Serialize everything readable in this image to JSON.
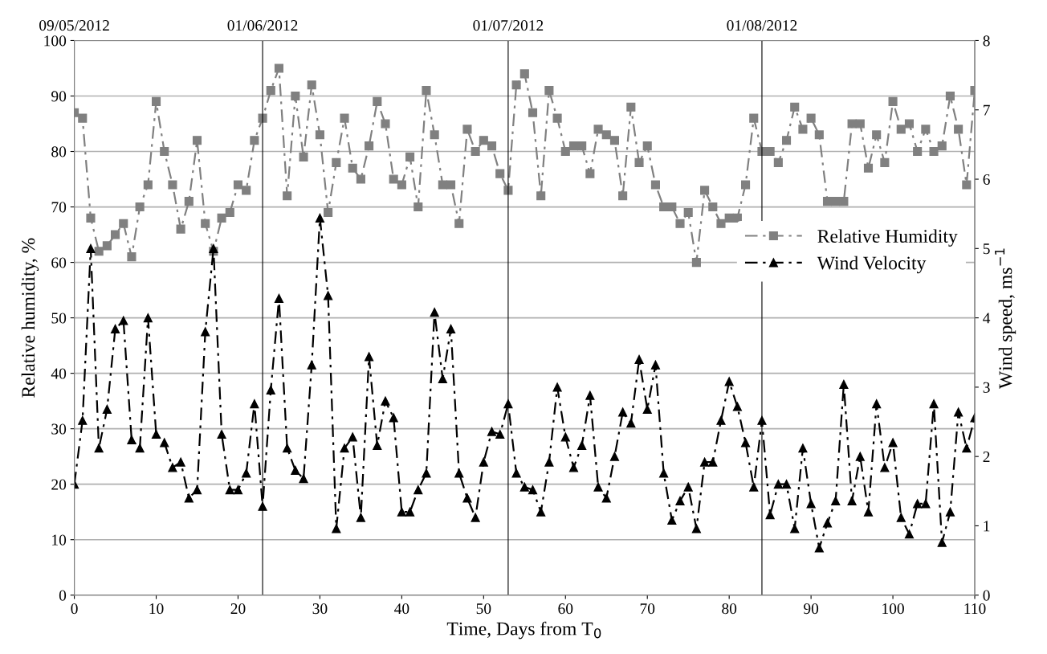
{
  "chart_data": {
    "type": "line",
    "xlabel": "Time, Days from T$_{0}$",
    "ylabel": "Relative humidity, %",
    "y2label": "Wind speed, ms$^{−1}$",
    "x": [
      0,
      1,
      2,
      3,
      4,
      5,
      6,
      7,
      8,
      9,
      10,
      11,
      12,
      13,
      14,
      15,
      16,
      17,
      18,
      19,
      20,
      21,
      22,
      23,
      24,
      25,
      26,
      27,
      28,
      29,
      30,
      31,
      32,
      33,
      34,
      35,
      36,
      37,
      38,
      39,
      40,
      41,
      42,
      43,
      44,
      45,
      46,
      47,
      48,
      49,
      50,
      51,
      52,
      53,
      54,
      55,
      56,
      57,
      58,
      59,
      60,
      61,
      62,
      63,
      64,
      65,
      66,
      67,
      68,
      69,
      70,
      71,
      72,
      73,
      74,
      75,
      76,
      77,
      78,
      79,
      80,
      81,
      82,
      83,
      84,
      85,
      86,
      87,
      88,
      89,
      90,
      91,
      92,
      93,
      94,
      95,
      96,
      97,
      98,
      99,
      100,
      101,
      102,
      103,
      104,
      105,
      106,
      107,
      108,
      109,
      110
    ],
    "series": [
      {
        "name": "Relative Humidity",
        "color": "#808080",
        "marker": "square",
        "line_style": "dashed",
        "values": [
          87,
          86,
          68,
          62,
          63,
          65,
          67,
          61,
          70,
          74,
          89,
          80,
          74,
          66,
          71,
          82,
          67,
          62,
          68,
          69,
          74,
          73,
          82,
          86,
          91,
          95,
          72,
          90,
          79,
          92,
          83,
          69,
          78,
          86,
          77,
          75,
          81,
          89,
          85,
          75,
          74,
          79,
          70,
          91,
          83,
          74,
          74,
          67,
          84,
          80,
          82,
          81,
          76,
          73,
          92,
          94,
          87,
          72,
          91,
          86,
          80,
          81,
          81,
          76,
          84,
          83,
          82,
          72,
          88,
          78,
          81,
          74,
          70,
          70,
          67,
          69,
          60,
          73,
          70,
          67,
          68,
          68,
          74,
          86,
          80,
          80,
          78,
          82,
          88,
          84,
          86,
          83,
          71,
          71,
          71,
          85,
          85,
          77,
          83,
          78,
          89,
          84,
          85,
          80,
          84,
          80,
          81,
          90,
          84,
          74,
          91
        ]
      },
      {
        "name": "Wind Velocity",
        "color": "#000000",
        "marker": "triangle",
        "line_style": "dashed",
        "axis": "y2",
        "values": [
          1.6,
          2.52,
          5.0,
          2.12,
          2.68,
          3.84,
          3.96,
          2.24,
          2.12,
          4.0,
          2.32,
          2.2,
          1.84,
          1.92,
          1.4,
          1.52,
          3.8,
          5.0,
          2.32,
          1.52,
          1.52,
          1.76,
          2.76,
          1.28,
          2.96,
          4.28,
          2.12,
          1.8,
          1.68,
          3.32,
          5.44,
          4.32,
          0.96,
          2.12,
          2.28,
          1.12,
          3.44,
          2.16,
          2.8,
          2.56,
          1.2,
          1.2,
          1.52,
          1.76,
          4.08,
          3.12,
          3.84,
          1.76,
          1.4,
          1.12,
          1.92,
          2.36,
          2.32,
          2.76,
          1.76,
          1.56,
          1.52,
          1.2,
          1.92,
          3.0,
          2.28,
          1.84,
          2.16,
          2.88,
          1.56,
          1.4,
          2.0,
          2.64,
          2.48,
          3.4,
          2.68,
          3.32,
          1.76,
          1.08,
          1.36,
          1.56,
          0.96,
          1.92,
          1.92,
          2.52,
          3.08,
          2.72,
          2.2,
          1.56,
          2.52,
          1.16,
          1.6,
          1.6,
          0.96,
          2.12,
          1.32,
          0.68,
          1.04,
          1.36,
          3.04,
          1.36,
          2.0,
          1.2,
          2.76,
          1.84,
          2.2,
          1.12,
          0.88,
          1.32,
          1.32,
          2.76,
          0.76,
          1.2,
          2.64,
          2.12,
          2.56
        ]
      }
    ],
    "xlim": [
      0,
      110
    ],
    "xticks": [
      0,
      10,
      20,
      30,
      40,
      50,
      60,
      70,
      80,
      90,
      100,
      110
    ],
    "ylim": [
      0,
      100
    ],
    "yticks": [
      0,
      10,
      20,
      30,
      40,
      50,
      60,
      70,
      80,
      90,
      100
    ],
    "y2lim": [
      0,
      8
    ],
    "y2ticks": [
      0,
      1,
      2,
      3,
      4,
      5,
      6,
      7,
      8
    ],
    "x2lim": [
      "2012-05-09",
      "2012-08-27"
    ],
    "x2ticks": [
      {
        "value": "2012-05-09",
        "label": "09/05/2012"
      },
      {
        "value": "2012-06-01",
        "label": "01/06/2012"
      },
      {
        "value": "2012-07-01",
        "label": "01/07/2012"
      },
      {
        "value": "2012-08-01",
        "label": "01/08/2012"
      }
    ],
    "ref_lines": [
      {
        "axis": "x",
        "value": 23,
        "color": "#000000"
      },
      {
        "axis": "x",
        "value": 53,
        "color": "#000000"
      },
      {
        "axis": "x",
        "value": 84,
        "color": "#000000"
      }
    ],
    "grid": "y",
    "legend": "right"
  }
}
